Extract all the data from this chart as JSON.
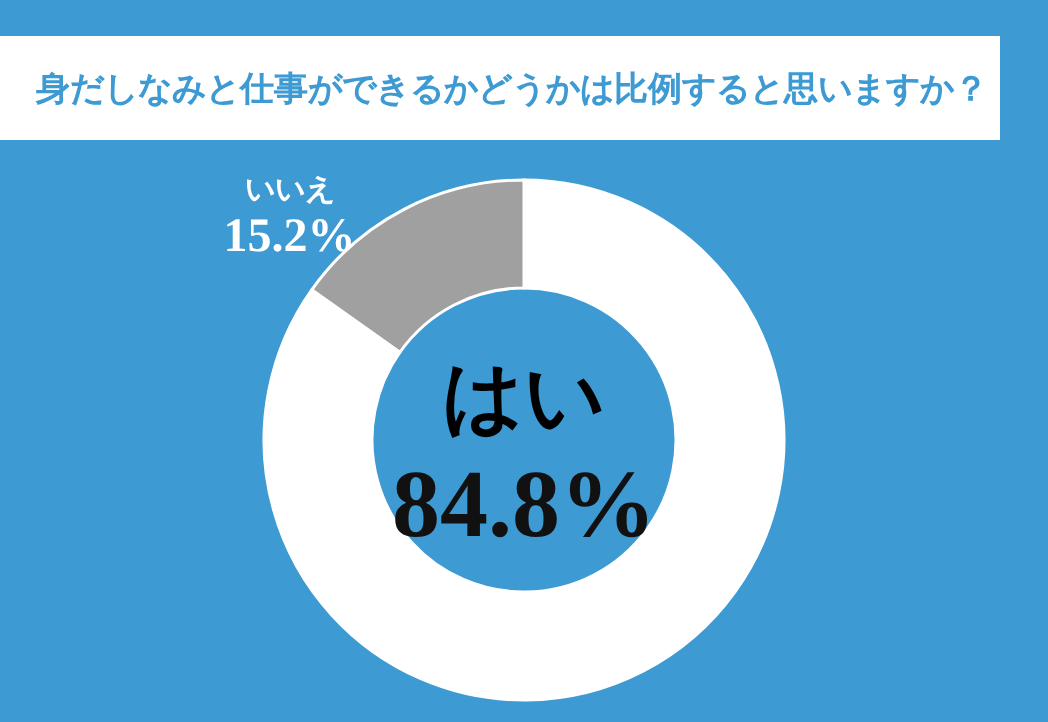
{
  "chart_data": {
    "type": "donut",
    "title": "身だしなみと仕事ができるかどうかは比例すると思いますか？",
    "categories": [
      "はい",
      "いいえ"
    ],
    "values": [
      84.8,
      15.2
    ],
    "colors": [
      "#ffffff",
      "#a0a0a0"
    ],
    "value_labels": [
      "84.8%",
      "15.2%"
    ],
    "legend": false
  }
}
